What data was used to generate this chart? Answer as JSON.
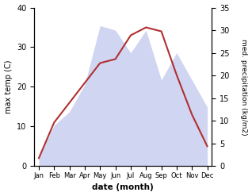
{
  "months": [
    "Jan",
    "Feb",
    "Mar",
    "Apr",
    "May",
    "Jun",
    "Jul",
    "Aug",
    "Sep",
    "Oct",
    "Nov",
    "Dec"
  ],
  "month_indices": [
    0,
    1,
    2,
    3,
    4,
    5,
    6,
    7,
    8,
    9,
    10,
    11
  ],
  "temperature": [
    2,
    11,
    16,
    21,
    26,
    27,
    33,
    35,
    34,
    23,
    13,
    5
  ],
  "precipitation": [
    2,
    9,
    12,
    18,
    31,
    30,
    25,
    30,
    19,
    25,
    19,
    13
  ],
  "temp_color": "#b03030",
  "precip_color": "#aab4e8",
  "precip_fill_alpha": 0.55,
  "temp_ylim": [
    0,
    40
  ],
  "precip_ylim": [
    0,
    35
  ],
  "temp_yticks": [
    0,
    10,
    20,
    30,
    40
  ],
  "precip_yticks": [
    0,
    5,
    10,
    15,
    20,
    25,
    30,
    35
  ],
  "ylabel_left": "max temp (C)",
  "ylabel_right": "med. precipitation (kg/m2)",
  "xlabel": "date (month)",
  "background_color": "#ffffff"
}
